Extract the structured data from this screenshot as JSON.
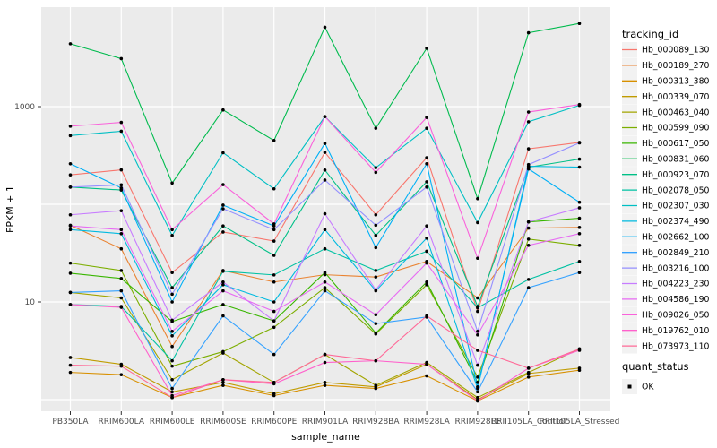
{
  "chart_data": {
    "type": "line",
    "title": "",
    "xlabel": "sample_name",
    "ylabel": "FPKM + 1",
    "y_scale": "log10",
    "panel_bg": "#EBEBEB",
    "grid_color": "#FFFFFF",
    "point_color": "#000000",
    "axis_text_color": "#4d4d4d",
    "y_ticks": [
      {
        "value": 10,
        "label": "10"
      },
      {
        "value": 1000,
        "label": "1000"
      }
    ],
    "y_gridlines": [
      1,
      10,
      100,
      1000
    ],
    "ylim": [
      0.8,
      10000
    ],
    "categories": [
      "PB350LA",
      "RRIM600LA",
      "RRIM600LE",
      "RRIM600SE",
      "RRIM600PE",
      "RRIM901LA",
      "RRIM928BA",
      "RRIM928LA",
      "RRIM928LE",
      "RRII105LA_Control",
      "RRII105LA_Stressed"
    ],
    "series": [
      {
        "name": "Hb_000089_130",
        "color": "#F8766D",
        "values": [
          200,
          225,
          20,
          52,
          42,
          340,
          78,
          300,
          8,
          370,
          430
        ]
      },
      {
        "name": "Hb_000189_270",
        "color": "#EA8331",
        "values": [
          61,
          35,
          3.5,
          21,
          16,
          19,
          18,
          26,
          11,
          57,
          58
        ]
      },
      {
        "name": "Hb_000313_380",
        "color": "#D89000",
        "values": [
          1.9,
          1.8,
          1.05,
          1.4,
          1.1,
          1.4,
          1.3,
          1.75,
          0.97,
          1.7,
          2.0
        ]
      },
      {
        "name": "Hb_000339_070",
        "color": "#C09B00",
        "values": [
          2.7,
          2.3,
          1.2,
          1.5,
          1.15,
          1.5,
          1.35,
          2.3,
          1.0,
          1.85,
          2.1
        ]
      },
      {
        "name": "Hb_000463_040",
        "color": "#A3A500",
        "values": [
          12.5,
          11,
          1.6,
          3.0,
          1.5,
          2.9,
          1.4,
          2.4,
          1.05,
          1.9,
          3.3
        ]
      },
      {
        "name": "Hb_000599_090",
        "color": "#7CAE00",
        "values": [
          25,
          21,
          2.2,
          3.1,
          5.5,
          14,
          4.7,
          15,
          1.7,
          44,
          38
        ]
      },
      {
        "name": "Hb_000617_050",
        "color": "#39B600",
        "values": [
          19.7,
          17.4,
          6.3,
          9.4,
          6.4,
          20,
          4.8,
          16,
          1.5,
          66,
          72
        ]
      },
      {
        "name": "Hb_000831_060",
        "color": "#00BB4E",
        "values": [
          4400,
          3100,
          165,
          925,
          450,
          6500,
          600,
          3960,
          114,
          5700,
          7100
        ]
      },
      {
        "name": "Hb_000923_070",
        "color": "#00C087",
        "values": [
          150,
          140,
          14,
          60,
          30,
          224,
          48,
          170,
          9,
          240,
          290
        ]
      },
      {
        "name": "Hb_002078_050",
        "color": "#00C1A3",
        "values": [
          9.4,
          9.0,
          2.5,
          20.6,
          18.9,
          35,
          21,
          33,
          8.7,
          17,
          26
        ]
      },
      {
        "name": "Hb_002307_030",
        "color": "#00BFC4",
        "values": [
          505,
          560,
          48,
          337,
          144,
          790,
          237,
          600,
          65,
          700,
          1030
        ]
      },
      {
        "name": "Hb_002374_490",
        "color": "#00BAE0",
        "values": [
          55,
          50,
          4.5,
          15,
          10,
          55,
          13,
          45,
          1.3,
          245,
          240
        ]
      },
      {
        "name": "Hb_002662_100",
        "color": "#00B0F6",
        "values": [
          260,
          147,
          10,
          98,
          60,
          420,
          36,
          260,
          1.35,
          230,
          105
        ]
      },
      {
        "name": "Hb_002849_210",
        "color": "#35A2FF",
        "values": [
          12.5,
          13,
          1.3,
          7.2,
          2.9,
          13,
          6.0,
          7.0,
          1.2,
          14,
          20
        ]
      },
      {
        "name": "Hb_003216_100",
        "color": "#9590FF",
        "values": [
          150,
          158,
          12,
          90,
          55,
          177,
          61,
          150,
          5,
          255,
          425
        ]
      },
      {
        "name": "Hb_004223_230",
        "color": "#C77CFF",
        "values": [
          78,
          86,
          6.5,
          16,
          6.4,
          80,
          13.3,
          60,
          2.25,
          66,
          92
        ]
      },
      {
        "name": "Hb_004586_190",
        "color": "#E76BF3",
        "values": [
          60,
          55,
          5,
          13,
          8,
          16,
          7.4,
          25,
          4.6,
          38,
          50
        ]
      },
      {
        "name": "Hb_009026_050",
        "color": "#FA62DB",
        "values": [
          630,
          690,
          55,
          159,
          63,
          790,
          212,
          775,
          28,
          880,
          1050
        ]
      },
      {
        "name": "Hb_019762_010",
        "color": "#FF61CC",
        "values": [
          9.4,
          8.8,
          1.1,
          1.6,
          1.45,
          2.4,
          2.5,
          2.3,
          0.97,
          2.1,
          3.2
        ]
      },
      {
        "name": "Hb_073973_110",
        "color": "#FF6A98",
        "values": [
          2.25,
          2.2,
          1.05,
          1.6,
          1.5,
          2.9,
          2.5,
          7.2,
          3.2,
          2.1,
          3.3
        ]
      }
    ],
    "legend": {
      "tracking_title": "tracking_id",
      "quant_title": "quant_status",
      "quant_items": [
        {
          "label": "OK",
          "marker_color": "#000000"
        }
      ],
      "key_bg": "#F2F2F2"
    }
  }
}
